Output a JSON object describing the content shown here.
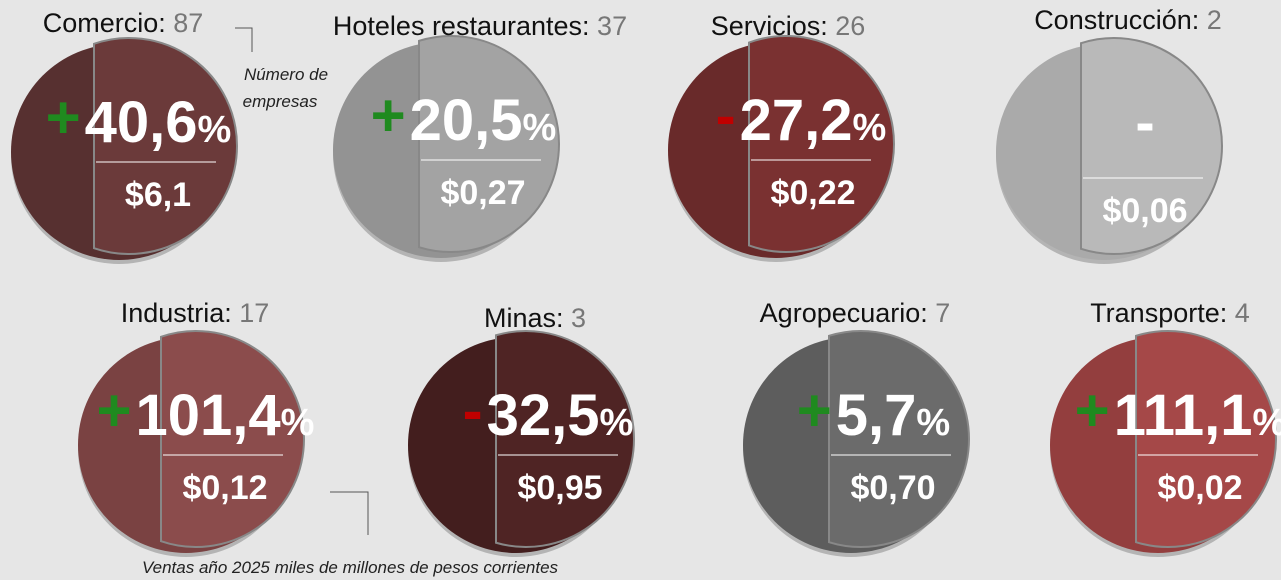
{
  "sectors": [
    {
      "name": "Comercio:",
      "count": 87,
      "sign": "+",
      "change": "40,6",
      "percent": "%",
      "sales": "$6,1"
    },
    {
      "name": "Hoteles restaurantes:",
      "count": 37,
      "sign": "+",
      "change": "20,5",
      "percent": "%",
      "sales": "$0,27"
    },
    {
      "name": "Servicios:",
      "count": 26,
      "sign": "-",
      "change": "27,2",
      "percent": "%",
      "sales": "$0,22"
    },
    {
      "name": "Construcción:",
      "count": 2,
      "change": "-",
      "sales": "$0,06"
    },
    {
      "name": "Industria:",
      "count": 17,
      "sign": "+",
      "change": "101,4",
      "percent": "%",
      "sales": "$0,12"
    },
    {
      "name": "Minas:",
      "count": 3,
      "sign": "-",
      "change": "32,5",
      "percent": "%",
      "sales": "$0,95"
    },
    {
      "name": "Agropecuario:",
      "count": 7,
      "sign": "+",
      "change": "5,7",
      "percent": "%",
      "sales": "$0,70"
    },
    {
      "name": "Transporte:",
      "count": 4,
      "sign": "+",
      "change": "111,1",
      "percent": "%",
      "sales": "$0,02"
    }
  ],
  "annotations": {
    "companies": [
      "Número de",
      "empresas"
    ],
    "sales": "Ventas año 2025 miles de millones de pesos corrientes"
  }
}
